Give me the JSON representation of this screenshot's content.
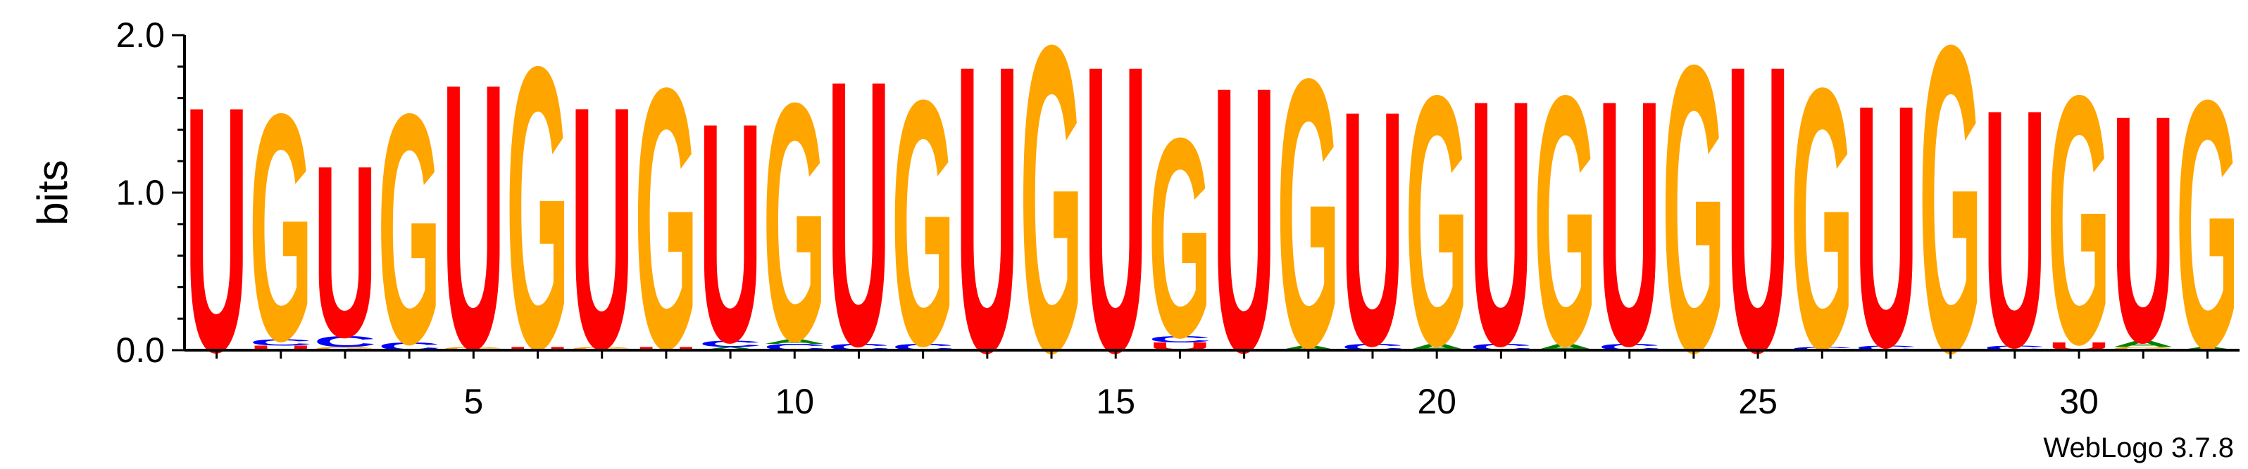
{
  "chart_data": {
    "type": "sequence-logo",
    "ylabel": "bits",
    "ylim": [
      0,
      2
    ],
    "yticks": [
      "0.0",
      "1.0",
      "2.0"
    ],
    "xticks": [
      5,
      10,
      15,
      20,
      25,
      30
    ],
    "alphabet_colors": {
      "U": "#ff0000",
      "G": "#ffa500",
      "C": "#0000ff",
      "A": "#008000"
    },
    "positions": [
      {
        "pos": 1,
        "stack": [
          [
            "U",
            1.6
          ]
        ]
      },
      {
        "pos": 2,
        "stack": [
          [
            "U",
            0.03
          ],
          [
            "C",
            0.04
          ],
          [
            "G",
            1.48
          ]
        ]
      },
      {
        "pos": 3,
        "stack": [
          [
            "G",
            0.02
          ],
          [
            "C",
            0.07
          ],
          [
            "U",
            1.12
          ]
        ]
      },
      {
        "pos": 4,
        "stack": [
          [
            "C",
            0.05
          ],
          [
            "G",
            1.5
          ]
        ]
      },
      {
        "pos": 5,
        "stack": [
          [
            "G",
            0.02
          ],
          [
            "U",
            1.73
          ]
        ]
      },
      {
        "pos": 6,
        "stack": [
          [
            "U",
            0.02
          ],
          [
            "G",
            1.84
          ]
        ]
      },
      {
        "pos": 7,
        "stack": [
          [
            "G",
            0.02
          ],
          [
            "U",
            1.58
          ]
        ]
      },
      {
        "pos": 8,
        "stack": [
          [
            "U",
            0.02
          ],
          [
            "G",
            1.7
          ]
        ]
      },
      {
        "pos": 9,
        "stack": [
          [
            "A",
            0.02
          ],
          [
            "C",
            0.04
          ],
          [
            "U",
            1.43
          ]
        ]
      },
      {
        "pos": 10,
        "stack": [
          [
            "C",
            0.04
          ],
          [
            "A",
            0.03
          ],
          [
            "G",
            1.55
          ]
        ]
      },
      {
        "pos": 11,
        "stack": [
          [
            "C",
            0.04
          ],
          [
            "U",
            1.73
          ]
        ]
      },
      {
        "pos": 12,
        "stack": [
          [
            "C",
            0.04
          ],
          [
            "G",
            1.6
          ]
        ]
      },
      {
        "pos": 13,
        "stack": [
          [
            "U",
            1.87
          ]
        ]
      },
      {
        "pos": 14,
        "stack": [
          [
            "G",
            2.0
          ]
        ]
      },
      {
        "pos": 15,
        "stack": [
          [
            "U",
            1.87
          ]
        ]
      },
      {
        "pos": 16,
        "stack": [
          [
            "U",
            0.05
          ],
          [
            "C",
            0.04
          ],
          [
            "G",
            1.3
          ]
        ]
      },
      {
        "pos": 17,
        "stack": [
          [
            "U",
            1.73
          ]
        ]
      },
      {
        "pos": 18,
        "stack": [
          [
            "A",
            0.03
          ],
          [
            "G",
            1.75
          ]
        ]
      },
      {
        "pos": 19,
        "stack": [
          [
            "C",
            0.04
          ],
          [
            "U",
            1.53
          ]
        ]
      },
      {
        "pos": 20,
        "stack": [
          [
            "A",
            0.04
          ],
          [
            "G",
            1.63
          ]
        ]
      },
      {
        "pos": 21,
        "stack": [
          [
            "C",
            0.04
          ],
          [
            "U",
            1.6
          ]
        ]
      },
      {
        "pos": 22,
        "stack": [
          [
            "A",
            0.04
          ],
          [
            "G",
            1.63
          ]
        ]
      },
      {
        "pos": 23,
        "stack": [
          [
            "C",
            0.04
          ],
          [
            "U",
            1.6
          ]
        ]
      },
      {
        "pos": 24,
        "stack": [
          [
            "G",
            1.87
          ]
        ]
      },
      {
        "pos": 25,
        "stack": [
          [
            "U",
            1.87
          ]
        ]
      },
      {
        "pos": 26,
        "stack": [
          [
            "C",
            0.02
          ],
          [
            "G",
            1.7
          ]
        ]
      },
      {
        "pos": 27,
        "stack": [
          [
            "C",
            0.03
          ],
          [
            "U",
            1.58
          ]
        ]
      },
      {
        "pos": 28,
        "stack": [
          [
            "G",
            2.0
          ]
        ]
      },
      {
        "pos": 29,
        "stack": [
          [
            "C",
            0.03
          ],
          [
            "U",
            1.55
          ]
        ]
      },
      {
        "pos": 30,
        "stack": [
          [
            "U",
            0.05
          ],
          [
            "G",
            1.62
          ]
        ]
      },
      {
        "pos": 31,
        "stack": [
          [
            "G",
            0.02
          ],
          [
            "A",
            0.04
          ],
          [
            "U",
            1.48
          ]
        ]
      },
      {
        "pos": 32,
        "stack": [
          [
            "A",
            0.02
          ],
          [
            "G",
            1.62
          ]
        ]
      }
    ]
  },
  "footer": "WebLogo 3.7.8"
}
